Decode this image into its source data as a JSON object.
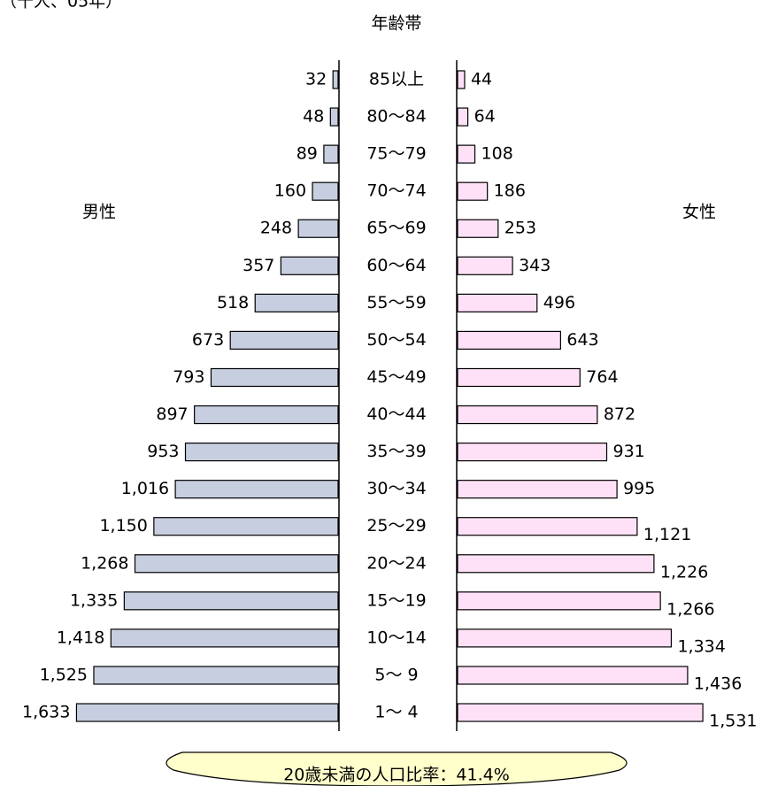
{
  "chart_data": {
    "type": "pyramid",
    "subtitle": "（千人、05年）",
    "title": "年齢帯",
    "callout": "20歳未満の人口比率：41.4%",
    "categories": [
      "85以上",
      "80～84",
      "75～79",
      "70～74",
      "65～69",
      "60～64",
      "55～59",
      "50～54",
      "45～49",
      "40～44",
      "35～39",
      "30～34",
      "25～29",
      "20～24",
      "15～19",
      "10～14",
      "5～ 9",
      "1～ 4"
    ],
    "series": [
      {
        "name": "男性",
        "color": "#c6cedf",
        "values": [
          32,
          48,
          89,
          160,
          248,
          357,
          518,
          673,
          793,
          897,
          953,
          1016,
          1150,
          1268,
          1335,
          1418,
          1525,
          1633
        ],
        "value_labels": [
          "32",
          "48",
          "89",
          "160",
          "248",
          "357",
          "518",
          "673",
          "793",
          "897",
          "953",
          "1,016",
          "1,150",
          "1,268",
          "1,335",
          "1,418",
          "1,525",
          "1,633"
        ]
      },
      {
        "name": "女性",
        "color": "#ffe1f7",
        "values": [
          44,
          64,
          108,
          186,
          253,
          343,
          496,
          643,
          764,
          872,
          931,
          995,
          1121,
          1226,
          1266,
          1334,
          1436,
          1531
        ],
        "value_labels": [
          "44",
          "64",
          "108",
          "186",
          "253",
          "343",
          "496",
          "643",
          "764",
          "872",
          "931",
          "995",
          "1,121",
          "1,226",
          "1,266",
          "1,334",
          "1,436",
          "1,531"
        ]
      }
    ]
  }
}
